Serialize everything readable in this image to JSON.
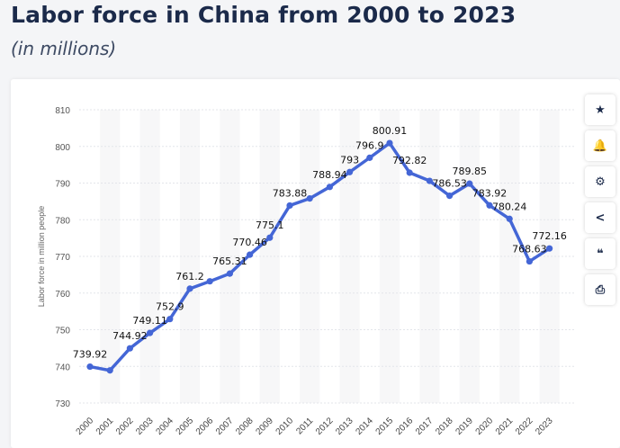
{
  "chart_data": {
    "type": "line",
    "title": "Labor force in China from 2000 to 2023",
    "subtitle": "(in millions)",
    "ylabel": "Labor force in million people",
    "xlabel": "",
    "ylim": [
      730,
      810
    ],
    "yticks": [
      "730",
      "740",
      "750",
      "760",
      "770",
      "780",
      "790",
      "800",
      "810"
    ],
    "grid": true,
    "color": "#4466d6",
    "x": [
      "2000",
      "2001",
      "2002",
      "2003",
      "2004",
      "2005",
      "2006",
      "2007",
      "2008",
      "2009",
      "2010",
      "2011",
      "2012",
      "2013",
      "2014",
      "2015",
      "2016",
      "2017",
      "2018",
      "2019",
      "2020",
      "2021",
      "2022",
      "2023"
    ],
    "values": [
      739.92,
      738.9,
      744.92,
      749.11,
      752.9,
      761.2,
      763.2,
      765.31,
      770.46,
      775.1,
      783.88,
      785.8,
      788.94,
      793,
      796.9,
      800.91,
      792.82,
      790.6,
      786.53,
      789.85,
      783.92,
      780.24,
      768.63,
      772.16
    ],
    "labels": [
      "739.92",
      "",
      "744.92",
      "749.11",
      "752.9",
      "761.2",
      "",
      "765.31",
      "770.46",
      "775.1",
      "783.88",
      "",
      "788.94",
      "793",
      "796.9",
      "800.91",
      "792.82",
      "",
      "786.53",
      "789.85",
      "783.92",
      "780.24",
      "768.63",
      "772.16"
    ]
  },
  "toolbar": [
    {
      "name": "star-icon",
      "glyph": "★"
    },
    {
      "name": "bell-icon",
      "glyph": "🔔"
    },
    {
      "name": "gear-icon",
      "glyph": "⚙"
    },
    {
      "name": "share-icon",
      "glyph": "<"
    },
    {
      "name": "quote-icon",
      "glyph": "❝"
    },
    {
      "name": "print-icon",
      "glyph": "⎙"
    }
  ]
}
